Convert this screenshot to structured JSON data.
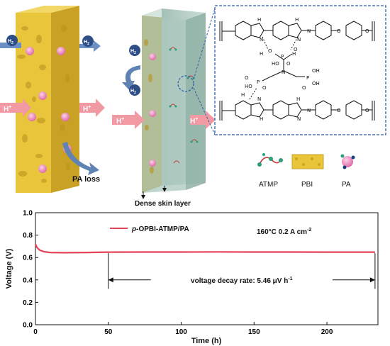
{
  "schematic": {
    "left_panel": {
      "h2": "H",
      "h2_sub": "2",
      "h2_out": "H",
      "h2_out_sub": "2",
      "proton": "H",
      "proton_sup": "+",
      "proton_out": "H",
      "proton_out_sup": "+",
      "pa_loss": "PA loss"
    },
    "middle_panel": {
      "h2_a": "H",
      "h2_a_sub": "2",
      "h2_b": "H",
      "h2_b_sub": "2",
      "proton": "H",
      "proton_sup": "+",
      "proton_out": "H",
      "proton_out_sup": "+",
      "skin_label": "Dense skin layer"
    },
    "structure": {
      "atoms": {
        "N": "N",
        "H": "H",
        "P": "P",
        "O": "O",
        "HO": "HO",
        "OH": "OH"
      }
    },
    "legend": [
      {
        "label": "ATMP",
        "icon": "atmp-molecule-icon"
      },
      {
        "label": "PBI",
        "icon": "pbi-sponge-icon"
      },
      {
        "label": "PA",
        "icon": "pa-molecule-icon"
      }
    ],
    "colors": {
      "pbi": "#e8c53a",
      "skin": "#b9d3c8",
      "proton_arrow": "#f29aa4",
      "h2_arrow": "#6b8fc2",
      "dashed_box": "#2d5ea8"
    }
  },
  "chart_data": {
    "type": "line",
    "ylabel": "Voltage (V)",
    "xlabel": "Time (h)",
    "xlim": [
      0,
      235
    ],
    "ylim": [
      0.0,
      1.0
    ],
    "xticks": [
      "0",
      "50",
      "100",
      "150",
      "200"
    ],
    "yticks": [
      "0.0",
      "0.2",
      "0.4",
      "0.6",
      "0.8",
      "1.0"
    ],
    "series": [
      {
        "name": "p-OPBI-ATMP/PA",
        "name_italic": "p",
        "name_rest": "-OPBI-ATMP/PA",
        "color": "#e8415a",
        "points": [
          [
            0,
            0.72
          ],
          [
            1,
            0.69
          ],
          [
            3,
            0.665
          ],
          [
            6,
            0.652
          ],
          [
            10,
            0.645
          ],
          [
            20,
            0.643
          ],
          [
            35,
            0.645
          ],
          [
            50,
            0.648
          ],
          [
            75,
            0.649
          ],
          [
            100,
            0.649
          ],
          [
            125,
            0.65
          ],
          [
            150,
            0.649
          ],
          [
            175,
            0.649
          ],
          [
            200,
            0.648
          ],
          [
            215,
            0.648
          ],
          [
            233,
            0.648
          ]
        ]
      }
    ],
    "conditions": {
      "text": "160°C  0.2 A cm",
      "sup": "-2"
    },
    "annotation": {
      "text": "voltage decay rate: 5.46 μV h",
      "sup": "-1",
      "x_start": 50,
      "x_end": 233,
      "y": 0.4
    }
  }
}
